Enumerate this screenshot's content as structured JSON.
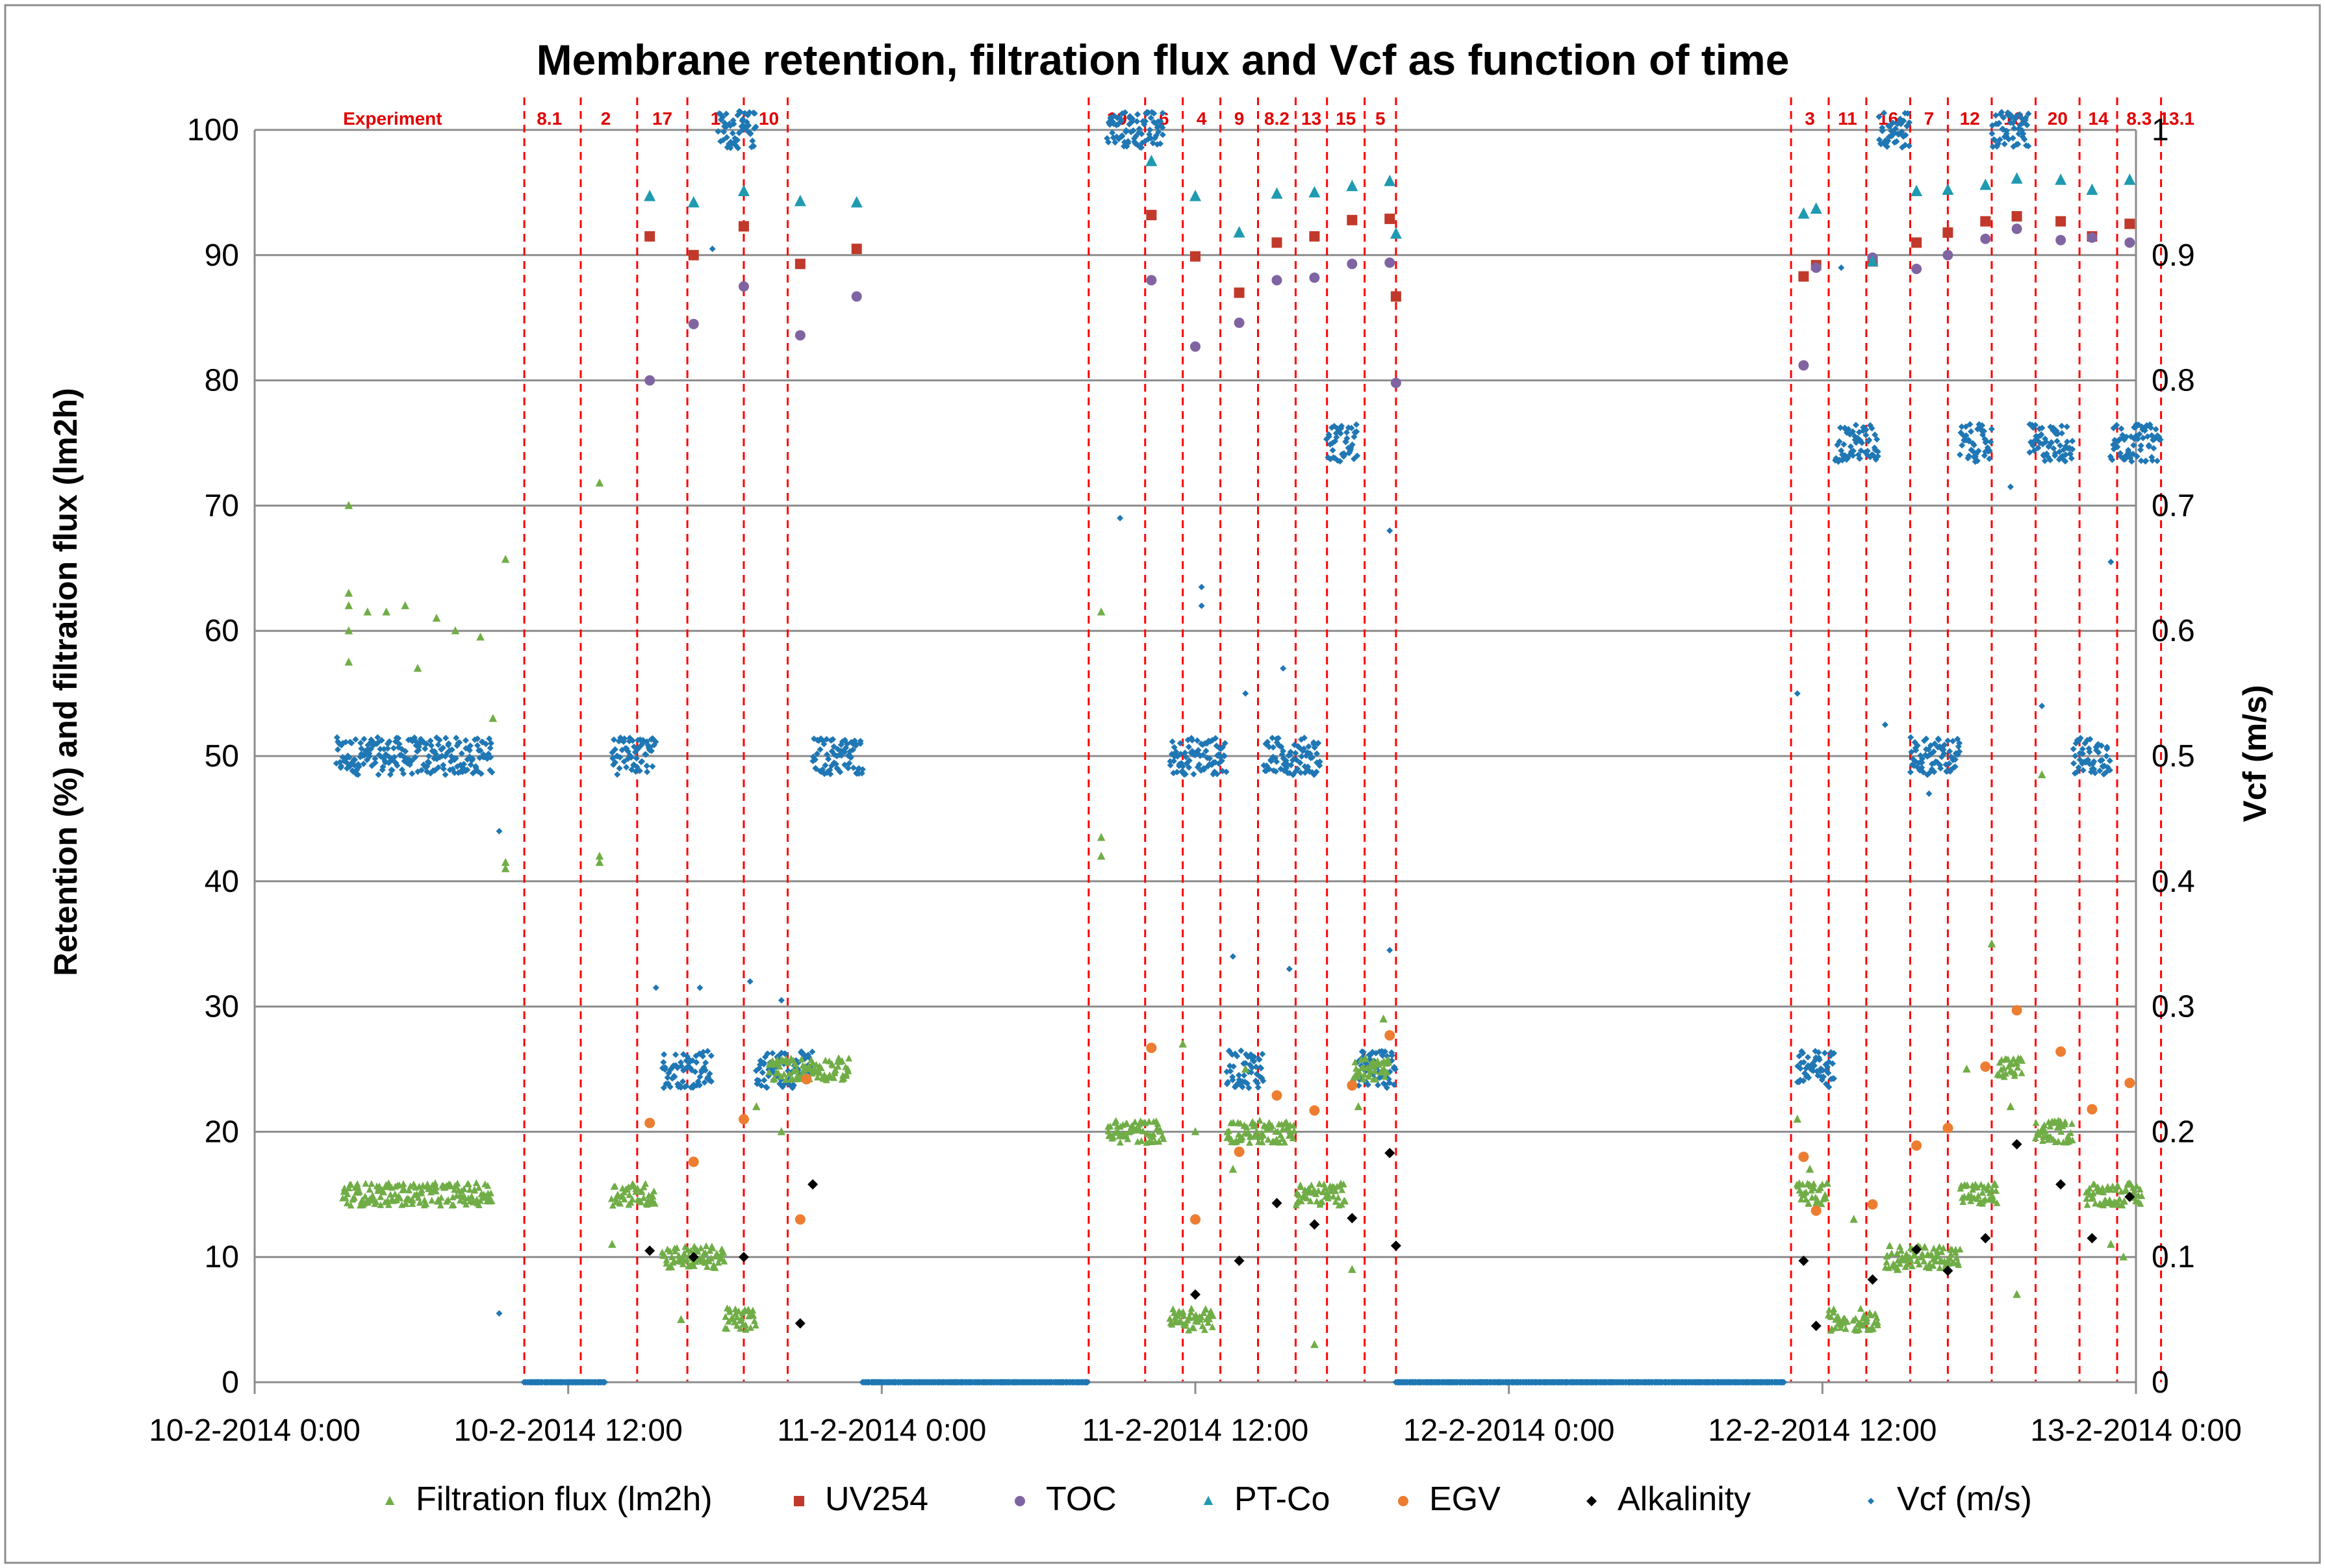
{
  "chart_data": {
    "type": "scatter",
    "title": "Membrane retention, filtration flux  and Vcf as function of time",
    "ylabel": "Retention (%)  and filtration flux (lm2h)",
    "y2label": "Vcf (m/s)",
    "xlabel": "",
    "xlim": [
      0,
      3
    ],
    "ylim": [
      0,
      100
    ],
    "y2lim": [
      0,
      1
    ],
    "grid": true,
    "legend_position": "bottom",
    "x_ticks": [
      {
        "x": 0,
        "label": "10-2-2014 0:00"
      },
      {
        "x": 0.5,
        "label": "10-2-2014 12:00"
      },
      {
        "x": 1,
        "label": "11-2-2014 0:00"
      },
      {
        "x": 1.5,
        "label": "11-2-2014 12:00"
      },
      {
        "x": 2,
        "label": "12-2-2014 0:00"
      },
      {
        "x": 2.5,
        "label": "12-2-2014 12:00"
      },
      {
        "x": 3,
        "label": "13-2-2014 0:00"
      }
    ],
    "y_ticks": [
      "0",
      "10",
      "20",
      "30",
      "40",
      "50",
      "60",
      "70",
      "80",
      "90",
      "100"
    ],
    "y2_ticks": [
      "0",
      "0.1",
      "0.2",
      "0.3",
      "0.4",
      "0.5",
      "0.6",
      "0.7",
      "0.8",
      "0.9",
      "1"
    ],
    "experiment_boundaries": [
      0.43,
      0.52,
      0.61,
      0.69,
      0.78,
      0.85,
      1.33,
      1.42,
      1.48,
      1.54,
      1.6,
      1.66,
      1.71,
      1.77,
      1.82,
      2.45,
      2.51,
      2.57,
      2.64,
      2.7,
      2.77,
      2.84,
      2.91,
      2.97,
      3.04
    ],
    "experiment_labels": [
      {
        "label": "Experiment",
        "x": 0.22
      },
      {
        "label": "8.1",
        "x": 0.47
      },
      {
        "label": "2",
        "x": 0.56
      },
      {
        "label": "17",
        "x": 0.65
      },
      {
        "label": "1",
        "x": 0.735
      },
      {
        "label": "10",
        "x": 0.82
      },
      {
        "label": "19",
        "x": 1.375
      },
      {
        "label": "6",
        "x": 1.45
      },
      {
        "label": "4",
        "x": 1.51
      },
      {
        "label": "9",
        "x": 1.57
      },
      {
        "label": "8.2",
        "x": 1.63
      },
      {
        "label": "13",
        "x": 1.685
      },
      {
        "label": "15",
        "x": 1.74
      },
      {
        "label": "5",
        "x": 1.795
      },
      {
        "label": "3",
        "x": 2.48
      },
      {
        "label": "11",
        "x": 2.54
      },
      {
        "label": "16",
        "x": 2.605
      },
      {
        "label": "7",
        "x": 2.67
      },
      {
        "label": "12",
        "x": 2.735
      },
      {
        "label": "18",
        "x": 2.805
      },
      {
        "label": "20",
        "x": 2.875
      },
      {
        "label": "14",
        "x": 2.94
      },
      {
        "label": "8.3",
        "x": 3.005
      },
      {
        "label": "13.1",
        "x": 3.065
      }
    ],
    "flux_segments": [
      {
        "x0": 0.14,
        "x1": 0.38,
        "y": 15
      },
      {
        "x0": 0.57,
        "x1": 0.64,
        "y": 15
      },
      {
        "x0": 0.65,
        "x1": 0.75,
        "y": 10
      },
      {
        "x0": 0.75,
        "x1": 0.8,
        "y": 5
      },
      {
        "x0": 0.82,
        "x1": 0.95,
        "y": 25
      },
      {
        "x0": 1.36,
        "x1": 1.45,
        "y": 20
      },
      {
        "x0": 1.46,
        "x1": 1.53,
        "y": 5
      },
      {
        "x0": 1.55,
        "x1": 1.66,
        "y": 20
      },
      {
        "x0": 1.66,
        "x1": 1.74,
        "y": 15
      },
      {
        "x0": 1.75,
        "x1": 1.81,
        "y": 25
      },
      {
        "x0": 2.46,
        "x1": 2.51,
        "y": 15
      },
      {
        "x0": 2.51,
        "x1": 2.54,
        "y": 5
      },
      {
        "x0": 2.55,
        "x1": 2.59,
        "y": 5
      },
      {
        "x0": 2.6,
        "x1": 2.72,
        "y": 10
      },
      {
        "x0": 2.72,
        "x1": 2.78,
        "y": 15
      },
      {
        "x0": 2.78,
        "x1": 2.82,
        "y": 25
      },
      {
        "x0": 2.84,
        "x1": 2.9,
        "y": 20
      },
      {
        "x0": 2.92,
        "x1": 3.01,
        "y": 15
      }
    ],
    "vcf_segments": [
      {
        "x0": 0.13,
        "x1": 0.38,
        "y": 0.5
      },
      {
        "x0": 0.43,
        "x1": 0.56,
        "y": 0.0
      },
      {
        "x0": 0.57,
        "x1": 0.64,
        "y": 0.5
      },
      {
        "x0": 0.65,
        "x1": 0.73,
        "y": 0.25
      },
      {
        "x0": 0.74,
        "x1": 0.8,
        "y": 1.0
      },
      {
        "x0": 0.8,
        "x1": 0.89,
        "y": 0.25
      },
      {
        "x0": 0.89,
        "x1": 0.97,
        "y": 0.5
      },
      {
        "x0": 0.97,
        "x1": 1.33,
        "y": 0.0
      },
      {
        "x0": 1.36,
        "x1": 1.45,
        "y": 1.0
      },
      {
        "x0": 1.46,
        "x1": 1.55,
        "y": 0.5
      },
      {
        "x0": 1.55,
        "x1": 1.61,
        "y": 0.25
      },
      {
        "x0": 1.61,
        "x1": 1.7,
        "y": 0.5
      },
      {
        "x0": 1.71,
        "x1": 1.76,
        "y": 0.75
      },
      {
        "x0": 1.76,
        "x1": 1.82,
        "y": 0.25
      },
      {
        "x0": 1.82,
        "x1": 2.44,
        "y": 0.0
      },
      {
        "x0": 2.46,
        "x1": 2.52,
        "y": 0.25
      },
      {
        "x0": 2.52,
        "x1": 2.59,
        "y": 0.75
      },
      {
        "x0": 2.59,
        "x1": 2.64,
        "y": 1.0
      },
      {
        "x0": 2.64,
        "x1": 2.72,
        "y": 0.5
      },
      {
        "x0": 2.72,
        "x1": 2.77,
        "y": 0.75
      },
      {
        "x0": 2.77,
        "x1": 2.83,
        "y": 1.0
      },
      {
        "x0": 2.83,
        "x1": 2.9,
        "y": 0.75
      },
      {
        "x0": 2.9,
        "x1": 2.96,
        "y": 0.5
      },
      {
        "x0": 2.96,
        "x1": 3.04,
        "y": 0.75
      }
    ],
    "series": [
      {
        "name": "Filtration flux (lm2h)",
        "color": "#70ad47",
        "marker": "triangle",
        "points": [
          [
            0.15,
            70
          ],
          [
            0.15,
            63
          ],
          [
            0.15,
            62
          ],
          [
            0.15,
            60
          ],
          [
            0.15,
            57.5
          ],
          [
            0.18,
            61.5
          ],
          [
            0.21,
            61.5
          ],
          [
            0.24,
            62
          ],
          [
            0.26,
            57
          ],
          [
            0.29,
            61
          ],
          [
            0.32,
            60
          ],
          [
            0.36,
            59.5
          ],
          [
            0.38,
            53
          ],
          [
            0.4,
            65.7
          ],
          [
            0.4,
            41.5
          ],
          [
            0.4,
            41
          ],
          [
            0.55,
            71.8
          ],
          [
            0.55,
            41.5
          ],
          [
            0.55,
            42
          ],
          [
            0.57,
            11
          ],
          [
            0.68,
            5
          ],
          [
            0.8,
            22
          ],
          [
            0.84,
            20
          ],
          [
            1.35,
            61.5
          ],
          [
            1.35,
            43.5
          ],
          [
            1.35,
            42
          ],
          [
            1.48,
            27
          ],
          [
            1.5,
            20
          ],
          [
            1.56,
            17
          ],
          [
            1.58,
            25
          ],
          [
            1.69,
            3
          ],
          [
            1.75,
            9
          ],
          [
            1.8,
            29
          ],
          [
            1.76,
            22
          ],
          [
            2.46,
            21
          ],
          [
            2.48,
            17
          ],
          [
            2.55,
            13
          ],
          [
            2.62,
            9
          ],
          [
            2.73,
            25
          ],
          [
            2.77,
            35
          ],
          [
            2.8,
            22
          ],
          [
            2.81,
            7
          ],
          [
            2.85,
            48.5
          ],
          [
            2.96,
            11
          ],
          [
            2.98,
            10
          ]
        ]
      },
      {
        "name": "UV254",
        "color": "#c0392b",
        "marker": "square",
        "points": [
          [
            0.63,
            91.5
          ],
          [
            0.7,
            90
          ],
          [
            0.78,
            92.3
          ],
          [
            0.87,
            89.3
          ],
          [
            0.96,
            90.5
          ],
          [
            1.43,
            93.2
          ],
          [
            1.5,
            89.9
          ],
          [
            1.57,
            87
          ],
          [
            1.63,
            91
          ],
          [
            1.69,
            91.5
          ],
          [
            1.75,
            92.8
          ],
          [
            1.81,
            92.9
          ],
          [
            1.82,
            86.7
          ],
          [
            2.47,
            88.3
          ],
          [
            2.49,
            89.2
          ],
          [
            2.58,
            89.5
          ],
          [
            2.65,
            91
          ],
          [
            2.7,
            91.8
          ],
          [
            2.76,
            92.7
          ],
          [
            2.81,
            93.1
          ],
          [
            2.88,
            92.7
          ],
          [
            2.93,
            91.5
          ],
          [
            2.99,
            92.5
          ]
        ]
      },
      {
        "name": "TOC",
        "color": "#8064a2",
        "marker": "circle",
        "points": [
          [
            0.63,
            80
          ],
          [
            0.7,
            84.5
          ],
          [
            0.78,
            87.5
          ],
          [
            0.87,
            83.6
          ],
          [
            0.96,
            86.7
          ],
          [
            1.43,
            88
          ],
          [
            1.5,
            82.7
          ],
          [
            1.57,
            84.6
          ],
          [
            1.63,
            88
          ],
          [
            1.69,
            88.2
          ],
          [
            1.75,
            89.3
          ],
          [
            1.81,
            89.4
          ],
          [
            1.82,
            79.8
          ],
          [
            2.47,
            81.2
          ],
          [
            2.49,
            89
          ],
          [
            2.58,
            89.8
          ],
          [
            2.65,
            88.9
          ],
          [
            2.7,
            90
          ],
          [
            2.76,
            91.3
          ],
          [
            2.81,
            92.1
          ],
          [
            2.88,
            91.2
          ],
          [
            2.93,
            91.4
          ],
          [
            2.99,
            91
          ]
        ]
      },
      {
        "name": "PT-Co",
        "color": "#1f9ab0",
        "marker": "triangle",
        "points": [
          [
            0.63,
            94.7
          ],
          [
            0.7,
            94.2
          ],
          [
            0.78,
            95.1
          ],
          [
            0.87,
            94.3
          ],
          [
            0.96,
            94.2
          ],
          [
            1.43,
            97.5
          ],
          [
            1.5,
            94.7
          ],
          [
            1.57,
            91.8
          ],
          [
            1.63,
            94.9
          ],
          [
            1.69,
            95
          ],
          [
            1.75,
            95.5
          ],
          [
            1.81,
            95.9
          ],
          [
            1.82,
            91.7
          ],
          [
            2.47,
            93.3
          ],
          [
            2.49,
            93.7
          ],
          [
            2.58,
            89.5
          ],
          [
            2.65,
            95.1
          ],
          [
            2.7,
            95.2
          ],
          [
            2.76,
            95.6
          ],
          [
            2.81,
            96.1
          ],
          [
            2.88,
            96
          ],
          [
            2.93,
            95.2
          ],
          [
            2.99,
            96
          ]
        ]
      },
      {
        "name": "EGV",
        "color": "#ed7d31",
        "marker": "circle",
        "points": [
          [
            0.63,
            20.7
          ],
          [
            0.7,
            17.6
          ],
          [
            0.78,
            21
          ],
          [
            0.87,
            13
          ],
          [
            0.88,
            24.2
          ],
          [
            1.43,
            26.7
          ],
          [
            1.5,
            13
          ],
          [
            1.57,
            18.4
          ],
          [
            1.63,
            22.9
          ],
          [
            1.69,
            21.7
          ],
          [
            1.75,
            23.7
          ],
          [
            1.81,
            27.7
          ],
          [
            2.47,
            18
          ],
          [
            2.49,
            13.7
          ],
          [
            2.58,
            14.2
          ],
          [
            2.65,
            18.9
          ],
          [
            2.7,
            20.3
          ],
          [
            2.76,
            25.2
          ],
          [
            2.81,
            29.7
          ],
          [
            2.88,
            26.4
          ],
          [
            2.93,
            21.8
          ],
          [
            2.99,
            23.9
          ]
        ]
      },
      {
        "name": "Alkalinity",
        "color": "#000000",
        "marker": "diamond",
        "points": [
          [
            0.63,
            10.5
          ],
          [
            0.7,
            10
          ],
          [
            0.78,
            10
          ],
          [
            0.87,
            4.7
          ],
          [
            0.89,
            15.8
          ],
          [
            1.5,
            7
          ],
          [
            1.57,
            9.7
          ],
          [
            1.63,
            14.3
          ],
          [
            1.69,
            12.6
          ],
          [
            1.75,
            13.1
          ],
          [
            1.81,
            18.3
          ],
          [
            1.82,
            10.9
          ],
          [
            2.47,
            9.7
          ],
          [
            2.49,
            4.5
          ],
          [
            2.58,
            8.2
          ],
          [
            2.65,
            10.6
          ],
          [
            2.7,
            8.9
          ],
          [
            2.76,
            11.5
          ],
          [
            2.81,
            19
          ],
          [
            2.88,
            15.8
          ],
          [
            2.93,
            11.5
          ],
          [
            2.99,
            14.8
          ]
        ]
      },
      {
        "name": "Vcf (m/s)",
        "color": "#1f77b4",
        "marker": "dot",
        "points": [
          [
            0.39,
            0.44
          ],
          [
            0.39,
            0.055
          ],
          [
            0.64,
            0.315
          ],
          [
            0.71,
            0.315
          ],
          [
            0.79,
            0.32
          ],
          [
            0.84,
            0.305
          ],
          [
            0.73,
            0.905
          ],
          [
            1.38,
            0.69
          ],
          [
            1.51,
            0.62
          ],
          [
            1.51,
            0.635
          ],
          [
            1.58,
            0.55
          ],
          [
            1.56,
            0.34
          ],
          [
            1.64,
            0.57
          ],
          [
            1.65,
            0.33
          ],
          [
            1.81,
            0.68
          ],
          [
            1.81,
            0.345
          ],
          [
            2.46,
            0.55
          ],
          [
            2.53,
            0.89
          ],
          [
            2.6,
            0.525
          ],
          [
            2.67,
            0.47
          ],
          [
            2.8,
            0.715
          ],
          [
            2.85,
            0.54
          ],
          [
            2.96,
            0.655
          ]
        ]
      }
    ]
  }
}
